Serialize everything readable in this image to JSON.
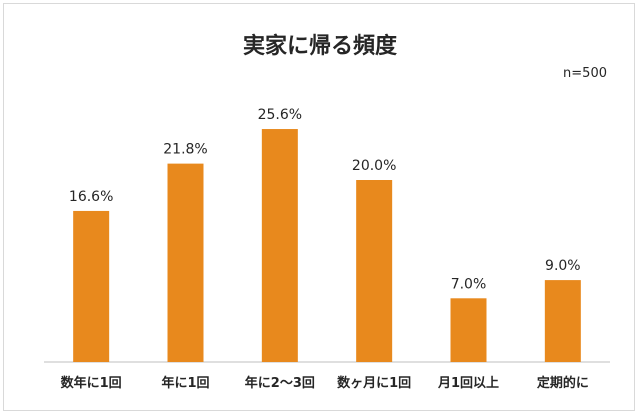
{
  "chart_data": {
    "type": "bar",
    "title": "実家に帰る頻度",
    "note": "n=500",
    "categories": [
      "数年に1回",
      "年に1回",
      "年に2～3回",
      "数ヶ月に1回",
      "月1回以上",
      "定期的に"
    ],
    "values": [
      16.6,
      21.8,
      25.6,
      20.0,
      7.0,
      9.0
    ],
    "value_labels": [
      "16.6%",
      "21.8%",
      "25.6%",
      "20.0%",
      "7.0%",
      "9.0%"
    ],
    "ylim": [
      0,
      30
    ],
    "grid": false,
    "bar_color": "#e8891d",
    "axis_color": "#bfbfbf"
  }
}
